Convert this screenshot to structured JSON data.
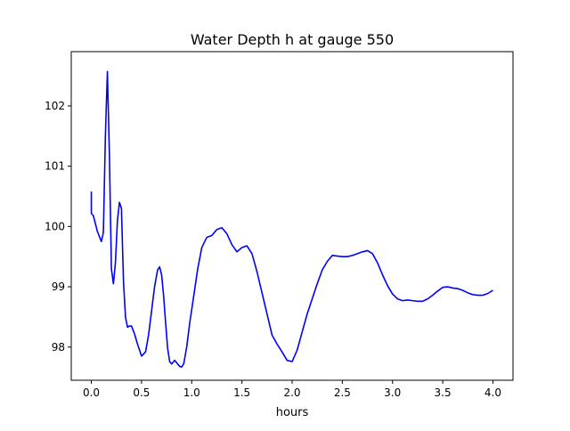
{
  "chart_data": {
    "type": "line",
    "title": "Water Depth h at gauge 550",
    "xlabel": "hours",
    "ylabel": "",
    "xlim": [
      -0.2,
      4.2
    ],
    "ylim": [
      97.45,
      102.9
    ],
    "grid": false,
    "legend": "none",
    "xticks": [
      0.0,
      0.5,
      1.0,
      1.5,
      2.0,
      2.5,
      3.0,
      3.5,
      4.0
    ],
    "xtick_labels": [
      "0.0",
      "0.5",
      "1.0",
      "1.5",
      "2.0",
      "2.5",
      "3.0",
      "3.5",
      "4.0"
    ],
    "yticks": [
      98,
      99,
      100,
      101,
      102
    ],
    "ytick_labels": [
      "98",
      "99",
      "100",
      "101",
      "102"
    ],
    "colors": {
      "line": "#0000ff",
      "axes": "#000000",
      "background": "#ffffff"
    },
    "series": [
      {
        "x": [
          0.0,
          0.0,
          0.02,
          0.06,
          0.1,
          0.12,
          0.14,
          0.16,
          0.18,
          0.2,
          0.22,
          0.24,
          0.26,
          0.28,
          0.3,
          0.32,
          0.34,
          0.36,
          0.38,
          0.4,
          0.43,
          0.46,
          0.5,
          0.54,
          0.57,
          0.6,
          0.63,
          0.66,
          0.68,
          0.7,
          0.72,
          0.74,
          0.76,
          0.78,
          0.8,
          0.83,
          0.86,
          0.88,
          0.9,
          0.92,
          0.95,
          0.98,
          1.02,
          1.06,
          1.1,
          1.15,
          1.2,
          1.25,
          1.3,
          1.35,
          1.4,
          1.45,
          1.5,
          1.55,
          1.6,
          1.65,
          1.7,
          1.75,
          1.8,
          1.85,
          1.9,
          1.95,
          2.0,
          2.05,
          2.1,
          2.15,
          2.2,
          2.25,
          2.3,
          2.35,
          2.4,
          2.45,
          2.5,
          2.55,
          2.6,
          2.65,
          2.7,
          2.75,
          2.8,
          2.85,
          2.9,
          2.95,
          3.0,
          3.05,
          3.1,
          3.15,
          3.2,
          3.25,
          3.3,
          3.35,
          3.4,
          3.45,
          3.5,
          3.55,
          3.6,
          3.65,
          3.7,
          3.75,
          3.8,
          3.85,
          3.9,
          3.95,
          4.0
        ],
        "y": [
          100.58,
          100.22,
          100.18,
          99.92,
          99.75,
          99.9,
          101.5,
          102.57,
          101.2,
          99.3,
          99.05,
          99.4,
          100.1,
          100.4,
          100.3,
          99.1,
          98.5,
          98.33,
          98.35,
          98.35,
          98.22,
          98.05,
          97.85,
          97.92,
          98.2,
          98.6,
          99.0,
          99.28,
          99.33,
          99.2,
          98.85,
          98.4,
          97.98,
          97.76,
          97.72,
          97.78,
          97.72,
          97.68,
          97.67,
          97.72,
          98.0,
          98.4,
          98.85,
          99.3,
          99.65,
          99.82,
          99.85,
          99.95,
          99.98,
          99.88,
          99.7,
          99.58,
          99.65,
          99.68,
          99.55,
          99.25,
          98.9,
          98.55,
          98.2,
          98.05,
          97.92,
          97.78,
          97.76,
          97.95,
          98.25,
          98.55,
          98.8,
          99.05,
          99.28,
          99.42,
          99.52,
          99.51,
          99.5,
          99.5,
          99.52,
          99.55,
          99.58,
          99.6,
          99.55,
          99.4,
          99.2,
          99.02,
          98.88,
          98.8,
          98.77,
          98.78,
          98.77,
          98.76,
          98.76,
          98.8,
          98.86,
          98.93,
          98.99,
          99.0,
          98.98,
          98.97,
          98.94,
          98.9,
          98.87,
          98.86,
          98.86,
          98.89,
          98.94
        ]
      }
    ]
  }
}
